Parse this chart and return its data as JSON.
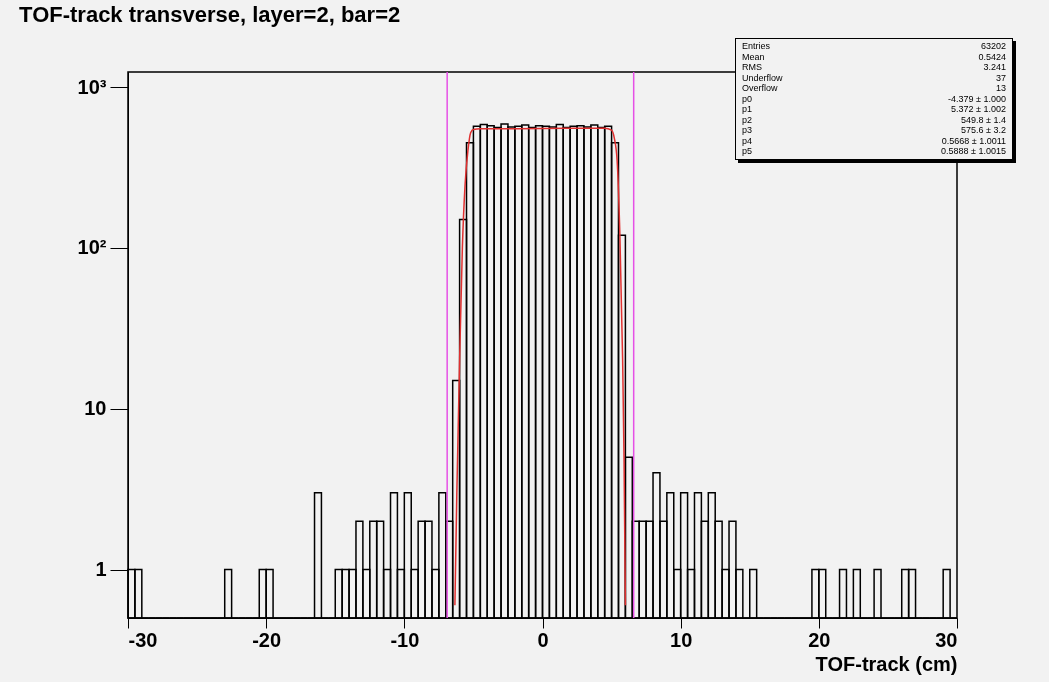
{
  "chart_data": {
    "type": "histogram",
    "title": "TOF-track transverse, layer=2, bar=2",
    "xlabel": "TOF-track (cm)",
    "bins": [
      -30,
      -29.5,
      -29,
      -28.5,
      -28,
      -27.5,
      -27,
      -26.5,
      -26,
      -25.5,
      -25,
      -24.5,
      -24,
      -23.5,
      -23,
      -22.5,
      -22,
      -21.5,
      -21,
      -20.5,
      -20,
      -19.5,
      -19,
      -18.5,
      -18,
      -17.5,
      -17,
      -16.5,
      -16,
      -15.5,
      -15,
      -14.5,
      -14,
      -13.5,
      -13,
      -12.5,
      -12,
      -11.5,
      -11,
      -10.5,
      -10,
      -9.5,
      -9,
      -8.5,
      -8,
      -7.5,
      -7,
      -6.5,
      -6,
      -5.5,
      -5,
      -4.5,
      -4,
      -3.5,
      -3,
      -2.5,
      -2,
      -1.5,
      -1,
      -0.5,
      0,
      0.5,
      1,
      1.5,
      2,
      2.5,
      3,
      3.5,
      4,
      4.5,
      5,
      5.5,
      6,
      6.5,
      7,
      7.5,
      8,
      8.5,
      9,
      9.5,
      10,
      10.5,
      11,
      11.5,
      12,
      12.5,
      13,
      13.5,
      14,
      14.5,
      15,
      15.5,
      16,
      16.5,
      17,
      17.5,
      18,
      18.5,
      19,
      19.5,
      20,
      20.5,
      21,
      21.5,
      22,
      22.5,
      23,
      23.5,
      24,
      24.5,
      25,
      25.5,
      26,
      26.5,
      27,
      27.5,
      28,
      28.5,
      29,
      29.5,
      30
    ],
    "color": "#000000",
    "values": [
      1,
      1,
      null,
      null,
      null,
      null,
      null,
      null,
      null,
      null,
      null,
      null,
      null,
      null,
      1,
      null,
      null,
      null,
      null,
      1,
      1,
      null,
      null,
      null,
      null,
      null,
      null,
      3,
      null,
      null,
      1,
      1,
      1,
      2,
      1,
      2,
      2,
      1,
      3,
      1,
      3,
      1,
      2,
      2,
      1,
      3,
      2,
      15,
      150,
      450,
      570,
      585,
      575,
      560,
      590,
      565,
      570,
      580,
      560,
      575,
      570,
      565,
      585,
      560,
      570,
      575,
      565,
      580,
      560,
      570,
      450,
      120,
      5,
      2,
      2,
      2,
      4,
      2,
      3,
      1,
      3,
      1,
      3,
      2,
      3,
      2,
      1,
      2,
      1,
      null,
      1,
      null,
      null,
      null,
      null,
      null,
      null,
      null,
      null,
      1,
      1,
      null,
      null,
      1,
      null,
      1,
      null,
      null,
      1,
      null,
      null,
      null,
      1,
      1,
      null,
      null,
      null,
      null,
      1,
      null
    ],
    "series": [
      {
        "type": "line",
        "color": "#e03030",
        "x": [
          -6.34,
          -6.2,
          -6.0,
          -5.8,
          -5.6,
          -5.4,
          -5.2,
          -5.0,
          -4.5,
          0,
          4.5,
          5.0,
          5.2,
          5.4,
          5.6,
          5.8,
          5.9,
          6.0
        ],
        "values": [
          0.6,
          3,
          20,
          100,
          250,
          400,
          520,
          545,
          550,
          552,
          555,
          540,
          480,
          350,
          120,
          20,
          5,
          0.6
        ]
      }
    ],
    "xlim": [
      -30,
      30
    ],
    "xticks": [
      -30,
      -20,
      -10,
      0,
      10,
      20,
      30
    ],
    "ylim": [
      0.5,
      1240
    ],
    "yticks": [
      1,
      10,
      {
        "value": 100,
        "label": "10²"
      },
      {
        "value": 1000,
        "label": "10³"
      }
    ],
    "log": true,
    "ref_lines": [
      {
        "axis": "x",
        "value": -6.9,
        "color": "#e650e6"
      },
      {
        "axis": "x",
        "value": 6.6,
        "color": "#e650e6"
      }
    ],
    "annotations": [
      "Entries 63202",
      "Mean 0.5424",
      "RMS 3.241",
      "Underflow 37",
      "Overflow 13",
      "p0 -4.379 ± 1.000",
      "p1 5.372 ± 1.002",
      "p2 549.8 ± 1.4",
      "p3 575.6 ± 3.2",
      "p4 0.5668 ± 1.0011",
      "p5 0.5888 ± 1.0015"
    ]
  }
}
